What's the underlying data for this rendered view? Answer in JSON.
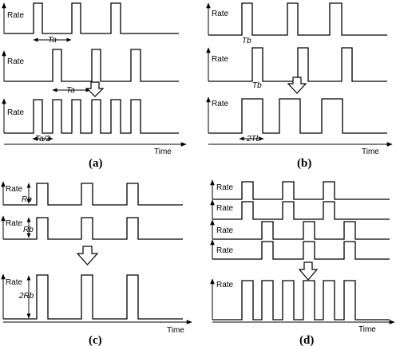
{
  "labels": {
    "rate": "Rate",
    "time": "Time",
    "ta": "Ta",
    "ta_half": "Ta/2",
    "tb": "Tb",
    "two_tb": "2Tb",
    "rb": "Rb",
    "two_rb": "2Rb"
  },
  "captions": {
    "a": "(a)",
    "b": "(b)",
    "c": "(c)",
    "d": "(d)"
  },
  "icons": [
    "arrow-down-icon"
  ]
}
